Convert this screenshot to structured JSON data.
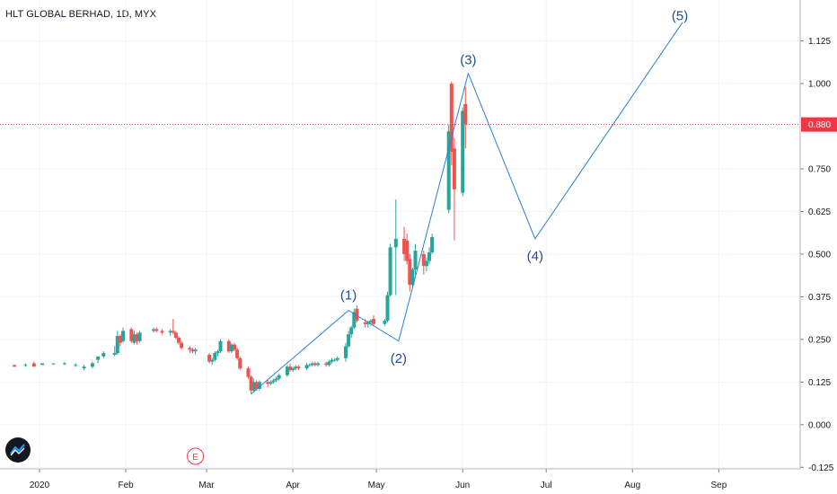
{
  "header": {
    "title": "HLT GLOBAL BERHAD, 1D, MYX"
  },
  "colors": {
    "up": "#26a69a",
    "down": "#ef5350",
    "wave_line": "#2b7fd4",
    "wave_label": "#1f4e8c",
    "price_line": "#f23645",
    "axis_text": "#131722",
    "grid": "#f0f3fa"
  },
  "icons": {
    "logo": "tradingview-logo-icon"
  },
  "chart_data": {
    "type": "candlestick",
    "ylim": [
      -0.14,
      1.245
    ],
    "y_ticks": [
      "1.125",
      "1.000",
      "0.750",
      "0.625",
      "0.500",
      "0.375",
      "0.250",
      "0.125",
      "0.000",
      "-0.125"
    ],
    "x_ticks": [
      "2020",
      "Feb",
      "Mar",
      "Apr",
      "May",
      "Jun",
      "Jul",
      "Aug",
      "Sep"
    ],
    "current_price": {
      "value": 0.88,
      "label": "0.880"
    },
    "earnings_marker": {
      "label": "E",
      "date": "Feb 26"
    },
    "candles": [
      {
        "date": "Dec 23",
        "o": 0.175,
        "h": 0.175,
        "l": 0.17,
        "c": 0.17
      },
      {
        "date": "Dec 27",
        "o": 0.175,
        "h": 0.18,
        "l": 0.17,
        "c": 0.175
      },
      {
        "date": "Dec 30",
        "o": 0.18,
        "h": 0.185,
        "l": 0.17,
        "c": 0.17
      },
      {
        "date": "Jan 2",
        "o": 0.175,
        "h": 0.18,
        "l": 0.175,
        "c": 0.18
      },
      {
        "date": "Jan 6",
        "o": 0.18,
        "h": 0.18,
        "l": 0.175,
        "c": 0.18
      },
      {
        "date": "Jan 10",
        "o": 0.18,
        "h": 0.185,
        "l": 0.175,
        "c": 0.18
      },
      {
        "date": "Jan 14",
        "o": 0.175,
        "h": 0.18,
        "l": 0.17,
        "c": 0.175
      },
      {
        "date": "Jan 17",
        "o": 0.165,
        "h": 0.175,
        "l": 0.16,
        "c": 0.17
      },
      {
        "date": "Jan 20",
        "o": 0.17,
        "h": 0.185,
        "l": 0.165,
        "c": 0.18
      },
      {
        "date": "Jan 22",
        "o": 0.19,
        "h": 0.2,
        "l": 0.18,
        "c": 0.2
      },
      {
        "date": "Jan 24",
        "o": 0.2,
        "h": 0.215,
        "l": 0.195,
        "c": 0.21
      },
      {
        "date": "Jan 28",
        "o": 0.205,
        "h": 0.23,
        "l": 0.2,
        "c": 0.21
      },
      {
        "date": "Jan 29",
        "o": 0.21,
        "h": 0.275,
        "l": 0.205,
        "c": 0.26
      },
      {
        "date": "Jan 30",
        "o": 0.26,
        "h": 0.265,
        "l": 0.23,
        "c": 0.24
      },
      {
        "date": "Jan 31",
        "o": 0.245,
        "h": 0.285,
        "l": 0.24,
        "c": 0.275
      },
      {
        "date": "Feb 3",
        "o": 0.28,
        "h": 0.285,
        "l": 0.24,
        "c": 0.245
      },
      {
        "date": "Feb 4",
        "o": 0.24,
        "h": 0.275,
        "l": 0.235,
        "c": 0.265
      },
      {
        "date": "Feb 5",
        "o": 0.265,
        "h": 0.27,
        "l": 0.235,
        "c": 0.245
      },
      {
        "date": "Feb 6",
        "o": 0.245,
        "h": 0.275,
        "l": 0.24,
        "c": 0.27
      },
      {
        "date": "Feb 11",
        "o": 0.275,
        "h": 0.285,
        "l": 0.27,
        "c": 0.28
      },
      {
        "date": "Feb 12",
        "o": 0.28,
        "h": 0.285,
        "l": 0.27,
        "c": 0.275
      },
      {
        "date": "Feb 14",
        "o": 0.275,
        "h": 0.28,
        "l": 0.265,
        "c": 0.27
      },
      {
        "date": "Feb 17",
        "o": 0.27,
        "h": 0.28,
        "l": 0.26,
        "c": 0.275
      },
      {
        "date": "Feb 18",
        "o": 0.275,
        "h": 0.31,
        "l": 0.265,
        "c": 0.27
      },
      {
        "date": "Feb 19",
        "o": 0.27,
        "h": 0.275,
        "l": 0.25,
        "c": 0.255
      },
      {
        "date": "Feb 20",
        "o": 0.255,
        "h": 0.26,
        "l": 0.235,
        "c": 0.24
      },
      {
        "date": "Feb 21",
        "o": 0.24,
        "h": 0.245,
        "l": 0.22,
        "c": 0.225
      },
      {
        "date": "Feb 24",
        "o": 0.225,
        "h": 0.23,
        "l": 0.21,
        "c": 0.22
      },
      {
        "date": "Feb 25",
        "o": 0.22,
        "h": 0.225,
        "l": 0.21,
        "c": 0.215
      },
      {
        "date": "Feb 26",
        "o": 0.215,
        "h": 0.225,
        "l": 0.205,
        "c": 0.22
      },
      {
        "date": "Mar 2",
        "o": 0.205,
        "h": 0.21,
        "l": 0.18,
        "c": 0.185
      },
      {
        "date": "Mar 3",
        "o": 0.185,
        "h": 0.195,
        "l": 0.175,
        "c": 0.19
      },
      {
        "date": "Mar 4",
        "o": 0.19,
        "h": 0.215,
        "l": 0.185,
        "c": 0.21
      },
      {
        "date": "Mar 5",
        "o": 0.21,
        "h": 0.22,
        "l": 0.2,
        "c": 0.215
      },
      {
        "date": "Mar 6",
        "o": 0.215,
        "h": 0.25,
        "l": 0.21,
        "c": 0.245
      },
      {
        "date": "Mar 9",
        "o": 0.245,
        "h": 0.25,
        "l": 0.21,
        "c": 0.215
      },
      {
        "date": "Mar 10",
        "o": 0.215,
        "h": 0.24,
        "l": 0.21,
        "c": 0.235
      },
      {
        "date": "Mar 11",
        "o": 0.235,
        "h": 0.24,
        "l": 0.215,
        "c": 0.22
      },
      {
        "date": "Mar 12",
        "o": 0.22,
        "h": 0.225,
        "l": 0.19,
        "c": 0.195
      },
      {
        "date": "Mar 13",
        "o": 0.195,
        "h": 0.2,
        "l": 0.16,
        "c": 0.165
      },
      {
        "date": "Mar 16",
        "o": 0.165,
        "h": 0.17,
        "l": 0.135,
        "c": 0.14
      },
      {
        "date": "Mar 17",
        "o": 0.14,
        "h": 0.145,
        "l": 0.09,
        "c": 0.1
      },
      {
        "date": "Mar 18",
        "o": 0.1,
        "h": 0.135,
        "l": 0.095,
        "c": 0.125
      },
      {
        "date": "Mar 19",
        "o": 0.125,
        "h": 0.13,
        "l": 0.1,
        "c": 0.105
      },
      {
        "date": "Mar 20",
        "o": 0.105,
        "h": 0.13,
        "l": 0.1,
        "c": 0.125
      },
      {
        "date": "Mar 23",
        "o": 0.125,
        "h": 0.135,
        "l": 0.11,
        "c": 0.12
      },
      {
        "date": "Mar 24",
        "o": 0.12,
        "h": 0.13,
        "l": 0.115,
        "c": 0.125
      },
      {
        "date": "Mar 25",
        "o": 0.125,
        "h": 0.135,
        "l": 0.12,
        "c": 0.13
      },
      {
        "date": "Mar 26",
        "o": 0.13,
        "h": 0.14,
        "l": 0.125,
        "c": 0.135
      },
      {
        "date": "Mar 27",
        "o": 0.135,
        "h": 0.15,
        "l": 0.13,
        "c": 0.145
      },
      {
        "date": "Mar 30",
        "o": 0.145,
        "h": 0.175,
        "l": 0.14,
        "c": 0.17
      },
      {
        "date": "Mar 31",
        "o": 0.17,
        "h": 0.18,
        "l": 0.155,
        "c": 0.16
      },
      {
        "date": "Apr 1",
        "o": 0.16,
        "h": 0.17,
        "l": 0.155,
        "c": 0.165
      },
      {
        "date": "Apr 2",
        "o": 0.165,
        "h": 0.175,
        "l": 0.16,
        "c": 0.17
      },
      {
        "date": "Apr 3",
        "o": 0.17,
        "h": 0.175,
        "l": 0.16,
        "c": 0.165
      },
      {
        "date": "Apr 6",
        "o": 0.165,
        "h": 0.18,
        "l": 0.16,
        "c": 0.175
      },
      {
        "date": "Apr 7",
        "o": 0.175,
        "h": 0.18,
        "l": 0.17,
        "c": 0.175
      },
      {
        "date": "Apr 8",
        "o": 0.175,
        "h": 0.185,
        "l": 0.17,
        "c": 0.18
      },
      {
        "date": "Apr 9",
        "o": 0.18,
        "h": 0.185,
        "l": 0.17,
        "c": 0.175
      },
      {
        "date": "Apr 10",
        "o": 0.175,
        "h": 0.185,
        "l": 0.17,
        "c": 0.18
      },
      {
        "date": "Apr 13",
        "o": 0.18,
        "h": 0.185,
        "l": 0.17,
        "c": 0.175
      },
      {
        "date": "Apr 14",
        "o": 0.175,
        "h": 0.19,
        "l": 0.17,
        "c": 0.185
      },
      {
        "date": "Apr 15",
        "o": 0.185,
        "h": 0.195,
        "l": 0.18,
        "c": 0.19
      },
      {
        "date": "Apr 16",
        "o": 0.19,
        "h": 0.195,
        "l": 0.185,
        "c": 0.19
      },
      {
        "date": "Apr 17",
        "o": 0.19,
        "h": 0.2,
        "l": 0.185,
        "c": 0.195
      },
      {
        "date": "Apr 20",
        "o": 0.195,
        "h": 0.24,
        "l": 0.185,
        "c": 0.23
      },
      {
        "date": "Apr 21",
        "o": 0.23,
        "h": 0.275,
        "l": 0.225,
        "c": 0.265
      },
      {
        "date": "Apr 22",
        "o": 0.265,
        "h": 0.29,
        "l": 0.255,
        "c": 0.285
      },
      {
        "date": "Apr 23",
        "o": 0.285,
        "h": 0.34,
        "l": 0.28,
        "c": 0.33
      },
      {
        "date": "Apr 24",
        "o": 0.34,
        "h": 0.35,
        "l": 0.3,
        "c": 0.305
      },
      {
        "date": "Apr 27",
        "o": 0.3,
        "h": 0.31,
        "l": 0.285,
        "c": 0.295
      },
      {
        "date": "Apr 28",
        "o": 0.295,
        "h": 0.305,
        "l": 0.285,
        "c": 0.3
      },
      {
        "date": "Apr 29",
        "o": 0.3,
        "h": 0.31,
        "l": 0.29,
        "c": 0.305
      },
      {
        "date": "Apr 30",
        "o": 0.31,
        "h": 0.32,
        "l": 0.29,
        "c": 0.295
      },
      {
        "date": "May 4",
        "o": 0.295,
        "h": 0.31,
        "l": 0.29,
        "c": 0.305
      },
      {
        "date": "May 5",
        "o": 0.305,
        "h": 0.39,
        "l": 0.3,
        "c": 0.38
      },
      {
        "date": "May 6",
        "o": 0.38,
        "h": 0.53,
        "l": 0.375,
        "c": 0.52
      },
      {
        "date": "May 8",
        "o": 0.52,
        "h": 0.66,
        "l": 0.38,
        "c": 0.545
      },
      {
        "date": "May 11",
        "o": 0.545,
        "h": 0.58,
        "l": 0.48,
        "c": 0.5
      },
      {
        "date": "May 12",
        "o": 0.54,
        "h": 0.56,
        "l": 0.47,
        "c": 0.48
      },
      {
        "date": "May 13",
        "o": 0.485,
        "h": 0.5,
        "l": 0.39,
        "c": 0.41
      },
      {
        "date": "May 14",
        "o": 0.41,
        "h": 0.46,
        "l": 0.405,
        "c": 0.455
      },
      {
        "date": "May 15",
        "o": 0.455,
        "h": 0.53,
        "l": 0.44,
        "c": 0.51
      },
      {
        "date": "May 18",
        "o": 0.5,
        "h": 0.51,
        "l": 0.44,
        "c": 0.465
      },
      {
        "date": "May 19",
        "o": 0.465,
        "h": 0.49,
        "l": 0.45,
        "c": 0.48
      },
      {
        "date": "May 20",
        "o": 0.48,
        "h": 0.52,
        "l": 0.47,
        "c": 0.505
      },
      {
        "date": "May 21",
        "o": 0.505,
        "h": 0.56,
        "l": 0.5,
        "c": 0.55
      },
      {
        "date": "May 27",
        "o": 0.63,
        "h": 0.88,
        "l": 0.62,
        "c": 0.86
      },
      {
        "date": "May 28",
        "o": 1.0,
        "h": 1.005,
        "l": 0.76,
        "c": 0.8
      },
      {
        "date": "May 29",
        "o": 0.81,
        "h": 0.84,
        "l": 0.54,
        "c": 0.69
      },
      {
        "date": "Jun 1",
        "o": 0.68,
        "h": 0.93,
        "l": 0.67,
        "c": 0.92
      },
      {
        "date": "Jun 2",
        "o": 0.94,
        "h": 0.99,
        "l": 0.81,
        "c": 0.88
      }
    ],
    "wave_points": [
      {
        "label": "",
        "date": "Mar 17",
        "value": 0.09
      },
      {
        "label": "(1)",
        "date": "Apr 21",
        "value": 0.335
      },
      {
        "label": "(2)",
        "date": "May 9",
        "value": 0.245
      },
      {
        "label": "(3)",
        "date": "Jun 3",
        "value": 1.03
      },
      {
        "label": "(4)",
        "date": "Jun 27",
        "value": 0.545
      },
      {
        "label": "(5)",
        "date": "Aug 19",
        "value": 1.18
      }
    ]
  }
}
